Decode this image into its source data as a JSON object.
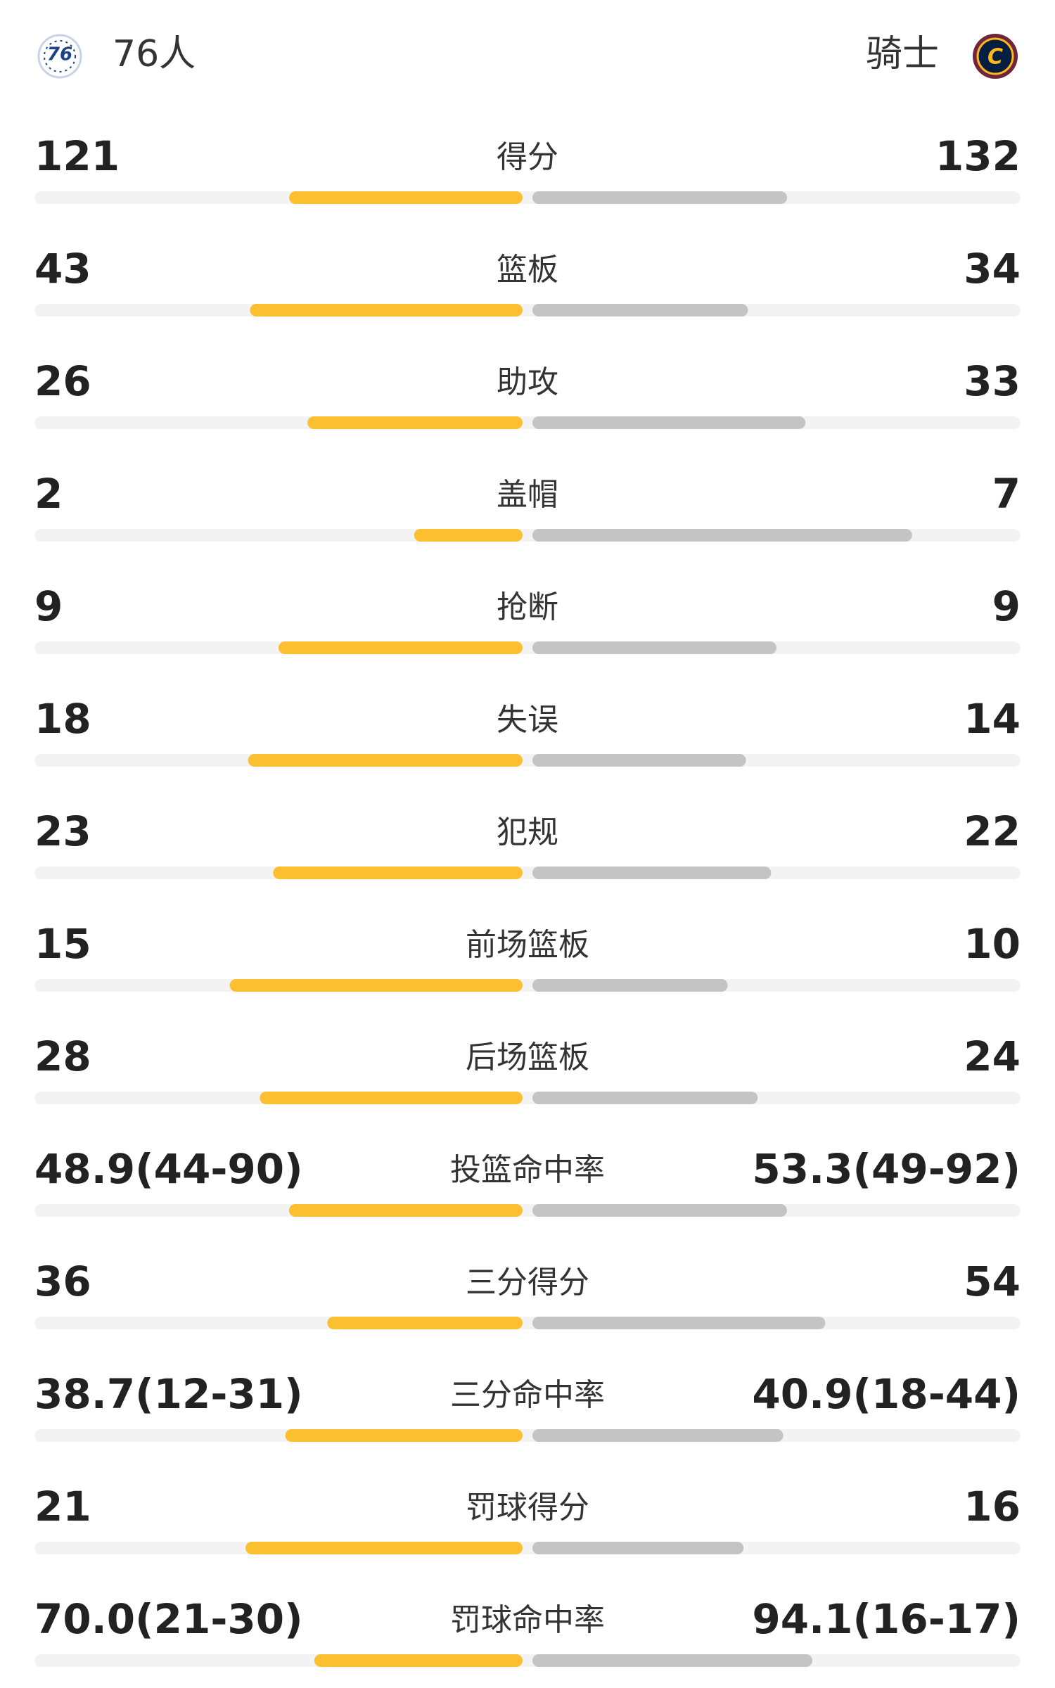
{
  "header": {
    "home": "76人",
    "away": "骑士"
  },
  "stats": [
    {
      "label": "得分",
      "home": 121,
      "away": 132
    },
    {
      "label": "篮板",
      "home": 43,
      "away": 34
    },
    {
      "label": "助攻",
      "home": 26,
      "away": 33
    },
    {
      "label": "盖帽",
      "home": 2,
      "away": 7
    },
    {
      "label": "抢断",
      "home": 9,
      "away": 9
    },
    {
      "label": "失误",
      "home": 18,
      "away": 14
    },
    {
      "label": "犯规",
      "home": 23,
      "away": 22
    },
    {
      "label": "前场篮板",
      "home": 15,
      "away": 10
    },
    {
      "label": "后场篮板",
      "home": 28,
      "away": 24
    },
    {
      "label": "投篮命中率",
      "home": {
        "value": 48.9,
        "label": "48.9(44-90)"
      },
      "away": {
        "value": 53.3,
        "label": "53.3(49-92)"
      }
    },
    {
      "label": "三分得分",
      "home": 36,
      "away": 54
    },
    {
      "label": "三分命中率",
      "home": {
        "value": 38.7,
        "label": "38.7(12-31)"
      },
      "away": {
        "value": 40.9,
        "label": "40.9(18-44)"
      }
    },
    {
      "label": "罚球得分",
      "home": 21,
      "away": 16
    },
    {
      "label": "罚球命中率",
      "home": {
        "value": 70.0,
        "label": "70.0(21-30)"
      },
      "away": {
        "value": 94.1,
        "label": "94.1(16-17)"
      }
    }
  ]
}
